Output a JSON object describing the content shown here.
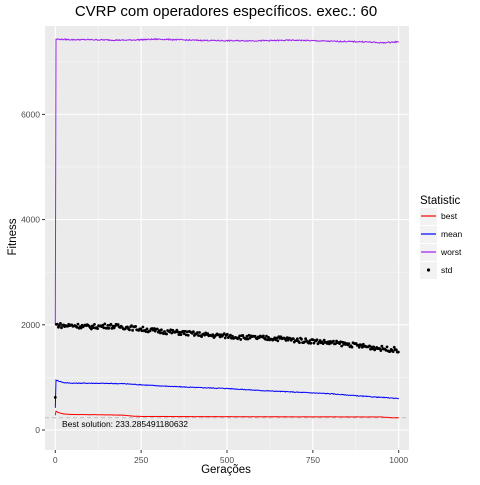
{
  "chart_data": {
    "type": "line",
    "title": "CVRP com operadores específicos. exec.: 60",
    "xlabel": "Gerações",
    "ylabel": "Fitness",
    "xlim": [
      -30,
      1030
    ],
    "ylim": [
      -380,
      7680
    ],
    "x_ticks": [
      0,
      250,
      500,
      750,
      1000
    ],
    "x_tick_labels": [
      "0",
      "250",
      "500",
      "750",
      "1000"
    ],
    "y_ticks": [
      0,
      2000,
      4000,
      6000
    ],
    "y_tick_labels": [
      "0",
      "2000",
      "4000",
      "6000"
    ],
    "grid": true,
    "legend": {
      "title": "Statistic",
      "position": "right"
    },
    "reference_line": {
      "y": 233.285491180632,
      "style": "dashed"
    },
    "annotation": "Best solution: 233.285491180632",
    "series": [
      {
        "name": "best",
        "color": "#ff0000",
        "style": "line",
        "points": [
          [
            0,
            280
          ],
          [
            1,
            360
          ],
          [
            10,
            330
          ],
          [
            25,
            305
          ],
          [
            50,
            295
          ],
          [
            100,
            292
          ],
          [
            150,
            288
          ],
          [
            200,
            282
          ],
          [
            230,
            262
          ],
          [
            250,
            258
          ],
          [
            400,
            255
          ],
          [
            600,
            252
          ],
          [
            800,
            250
          ],
          [
            950,
            248
          ],
          [
            980,
            233
          ],
          [
            1000,
            233
          ]
        ]
      },
      {
        "name": "mean",
        "color": "#0000ff",
        "style": "line",
        "points": [
          [
            0,
            420
          ],
          [
            1,
            950
          ],
          [
            25,
            900
          ],
          [
            50,
            890
          ],
          [
            100,
            890
          ],
          [
            200,
            880
          ],
          [
            300,
            840
          ],
          [
            400,
            810
          ],
          [
            500,
            790
          ],
          [
            600,
            750
          ],
          [
            700,
            720
          ],
          [
            800,
            690
          ],
          [
            900,
            640
          ],
          [
            1000,
            600
          ]
        ]
      },
      {
        "name": "worst",
        "color": "#9a1ef0",
        "style": "line",
        "points": [
          [
            0,
            2000
          ],
          [
            1,
            7430
          ],
          [
            50,
            7420
          ],
          [
            100,
            7420
          ],
          [
            200,
            7410
          ],
          [
            300,
            7430
          ],
          [
            400,
            7410
          ],
          [
            500,
            7400
          ],
          [
            600,
            7400
          ],
          [
            700,
            7410
          ],
          [
            800,
            7390
          ],
          [
            900,
            7380
          ],
          [
            950,
            7360
          ],
          [
            1000,
            7380
          ]
        ]
      },
      {
        "name": "std",
        "color": "#000000",
        "style": "points",
        "points": [
          [
            0,
            620
          ],
          [
            1,
            1750
          ],
          [
            3,
            2000
          ],
          [
            25,
            1980
          ],
          [
            50,
            1990
          ],
          [
            100,
            1960
          ],
          [
            150,
            1980
          ],
          [
            200,
            1960
          ],
          [
            250,
            1920
          ],
          [
            300,
            1880
          ],
          [
            350,
            1860
          ],
          [
            400,
            1830
          ],
          [
            450,
            1800
          ],
          [
            500,
            1790
          ],
          [
            550,
            1760
          ],
          [
            600,
            1750
          ],
          [
            650,
            1740
          ],
          [
            700,
            1710
          ],
          [
            750,
            1690
          ],
          [
            800,
            1660
          ],
          [
            850,
            1630
          ],
          [
            900,
            1590
          ],
          [
            950,
            1550
          ],
          [
            1000,
            1520
          ]
        ]
      }
    ]
  }
}
